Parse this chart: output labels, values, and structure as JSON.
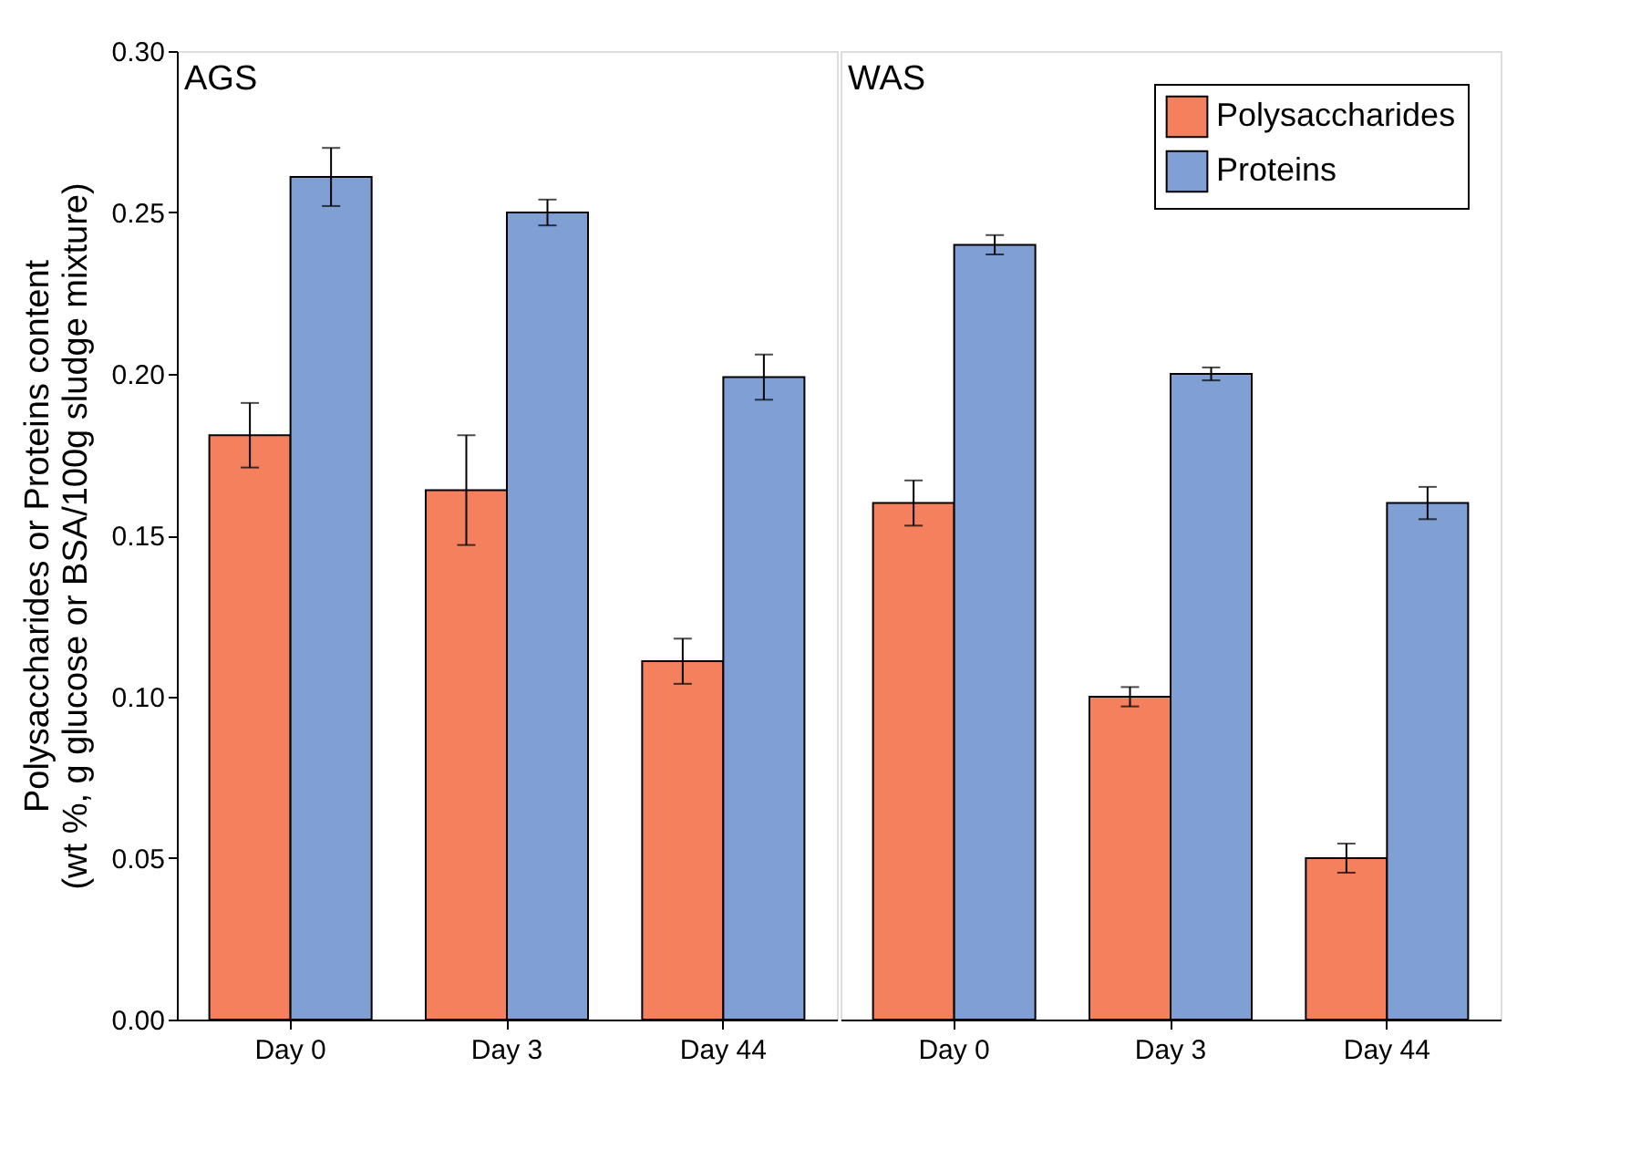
{
  "chart_data": [
    {
      "type": "bar",
      "categories": [
        "Day 0",
        "Day 3",
        "Day 44"
      ],
      "ylabel": "Polysaccharides or Proteins content\n(wt %, g glucose or BSA/100g sludge mixture)",
      "annotations": [
        "AGS"
      ],
      "ylim": [
        0,
        0.3
      ],
      "yticks": [
        {
          "value": 0,
          "label": "0.00"
        },
        {
          "value": 0.05,
          "label": "0.05"
        },
        {
          "value": 0.1,
          "label": "0.10"
        },
        {
          "value": 0.15,
          "label": "0.15"
        },
        {
          "value": 0.2,
          "label": "0.20"
        },
        {
          "value": 0.25,
          "label": "0.25"
        },
        {
          "value": 0.3,
          "label": "0.30"
        }
      ],
      "grid": false,
      "legend": false,
      "series": [
        {
          "color": "#f4805e",
          "values": [
            0.181,
            0.164,
            0.111
          ],
          "errors": [
            0.01,
            0.017,
            0.007
          ]
        },
        {
          "color": "#7f9fd5",
          "values": [
            0.261,
            0.25,
            0.199
          ],
          "errors": [
            0.009,
            0.004,
            0.007
          ]
        }
      ]
    },
    {
      "type": "bar",
      "categories": [
        "Day 0",
        "Day 3",
        "Day 44"
      ],
      "annotations": [
        "WAS"
      ],
      "ylim": [
        0,
        0.3
      ],
      "tick_labels": "x",
      "grid": false,
      "legend": "top right",
      "series": [
        {
          "name": "Polysaccharides",
          "color": "#f4805e",
          "values": [
            0.16,
            0.1,
            0.05
          ],
          "errors": [
            0.007,
            0.003,
            0.0045
          ]
        },
        {
          "name": "Proteins",
          "color": "#7f9fd5",
          "values": [
            0.24,
            0.2,
            0.16
          ],
          "errors": [
            0.003,
            0.002,
            0.005
          ]
        }
      ]
    }
  ]
}
